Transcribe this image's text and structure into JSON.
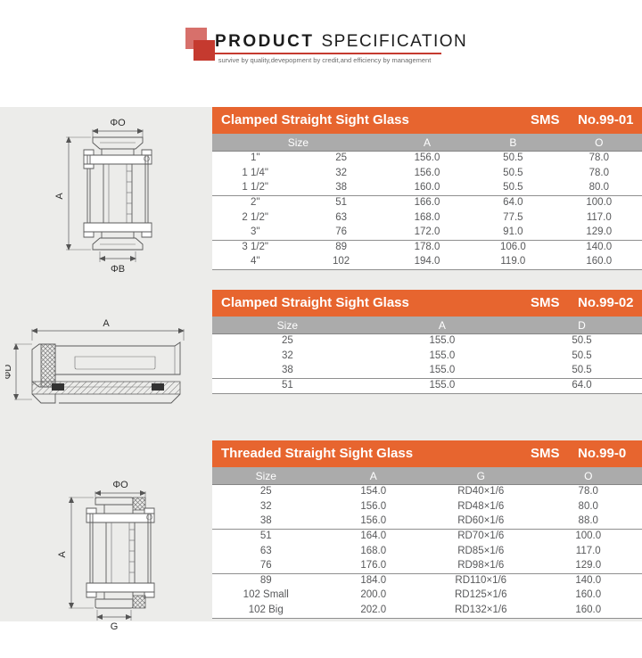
{
  "header": {
    "title_bold": "PRODUCT",
    "title_rest": "SPECIFICATION",
    "tagline": "survive by quality,devepopment by credit,and efficiency by management",
    "accent_red": "#c53a2f",
    "logo_back_red": "#d7706b"
  },
  "colors": {
    "title_bar_orange": "#e7652f",
    "column_header_gray": "#ababab",
    "panel_gray": "#ececea",
    "row_text": "#58595b"
  },
  "tables": [
    {
      "title": "Clamped Straight Sight Glass",
      "standard": "SMS",
      "doc_no": "No.99-01",
      "headers": [
        {
          "label": "Size",
          "span": 2
        },
        {
          "label": "A",
          "span": 1
        },
        {
          "label": "B",
          "span": 1
        },
        {
          "label": "O",
          "span": 1
        }
      ],
      "col_widths": [
        "20%",
        "20%",
        "20%",
        "20%",
        "20%"
      ],
      "rows": [
        [
          "1\"",
          "25",
          "156.0",
          "50.5",
          "78.0"
        ],
        [
          "1 1/4\"",
          "32",
          "156.0",
          "50.5",
          "78.0"
        ],
        [
          "1 1/2\"",
          "38",
          "160.0",
          "50.5",
          "80.0"
        ],
        [
          "2\"",
          "51",
          "166.0",
          "64.0",
          "100.0"
        ],
        [
          "2 1/2\"",
          "63",
          "168.0",
          "77.5",
          "117.0"
        ],
        [
          "3\"",
          "76",
          "172.0",
          "91.0",
          "129.0"
        ],
        [
          "3 1/2\"",
          "89",
          "178.0",
          "106.0",
          "140.0"
        ],
        [
          "4\"",
          "102",
          "194.0",
          "119.0",
          "160.0"
        ]
      ],
      "group_sizes": [
        3,
        3,
        2
      ]
    },
    {
      "title": "Clamped Straight Sight Glass",
      "standard": "SMS",
      "doc_no": "No.99-02",
      "headers": [
        {
          "label": "Size",
          "span": 1
        },
        {
          "label": "A",
          "span": 1
        },
        {
          "label": "D",
          "span": 1
        }
      ],
      "col_widths": [
        "35%",
        "37%",
        "28%"
      ],
      "rows": [
        [
          "25",
          "155.0",
          "50.5"
        ],
        [
          "32",
          "155.0",
          "50.5"
        ],
        [
          "38",
          "155.0",
          "50.5"
        ],
        [
          "51",
          "155.0",
          "64.0"
        ]
      ],
      "group_sizes": [
        3,
        1
      ]
    },
    {
      "title": "Threaded Straight Sight Glass",
      "standard": "SMS",
      "doc_no": "No.99-0",
      "headers": [
        {
          "label": "Size",
          "span": 1
        },
        {
          "label": "A",
          "span": 1
        },
        {
          "label": "G",
          "span": 1
        },
        {
          "label": "O",
          "span": 1
        }
      ],
      "col_widths": [
        "25%",
        "25%",
        "25%",
        "25%"
      ],
      "rows": [
        [
          "25",
          "154.0",
          "RD40×1/6",
          "78.0"
        ],
        [
          "32",
          "156.0",
          "RD48×1/6",
          "80.0"
        ],
        [
          "38",
          "156.0",
          "RD60×1/6",
          "88.0"
        ],
        [
          "51",
          "164.0",
          "RD70×1/6",
          "100.0"
        ],
        [
          "63",
          "168.0",
          "RD85×1/6",
          "117.0"
        ],
        [
          "76",
          "176.0",
          "RD98×1/6",
          "129.0"
        ],
        [
          "89",
          "184.0",
          "RD110×1/6",
          "140.0"
        ],
        [
          "102 Small",
          "200.0",
          "RD125×1/6",
          "160.0"
        ],
        [
          "102 Big",
          "202.0",
          "RD132×1/6",
          "160.0"
        ]
      ],
      "group_sizes": [
        3,
        3,
        3
      ]
    }
  ],
  "drawings": [
    {
      "name": "clamped sight glass side view",
      "labels": {
        "top": "ΦO",
        "left": "A",
        "bottom": "ΦB"
      }
    },
    {
      "name": "clamped sight glass cross section",
      "labels": {
        "top": "A",
        "left": "ΦD"
      }
    },
    {
      "name": "threaded sight glass side view",
      "labels": {
        "top": "ΦO",
        "left": "A",
        "bottom": "G"
      }
    }
  ]
}
